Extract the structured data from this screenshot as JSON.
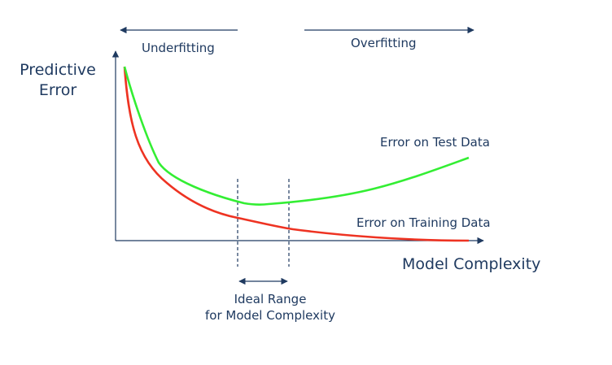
{
  "labels": {
    "y_axis": [
      "Predictive",
      "Error"
    ],
    "x_axis": "Model Complexity",
    "underfitting": "Underfitting",
    "overfitting": "Overfitting",
    "test_curve": "Error on Test Data",
    "training_curve": "Error on Training Data",
    "ideal_range": [
      "Ideal Range",
      "for Model Complexity"
    ]
  },
  "colors": {
    "text": "#1f3a60",
    "axis": "#1f3a60",
    "test_curve": "#33ee33",
    "training_curve": "#ee3322"
  }
}
